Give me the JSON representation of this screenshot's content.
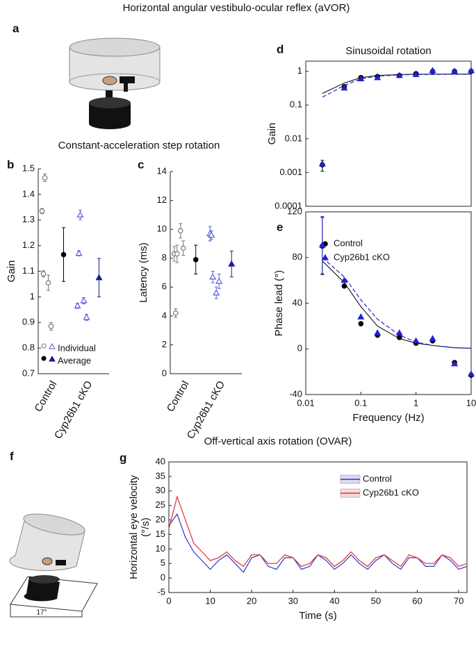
{
  "title": "Horizontal angular vestibulo-ocular reflex (aVOR)",
  "panel_labels": [
    "a",
    "b",
    "c",
    "d",
    "e",
    "f",
    "g"
  ],
  "subtitles": [
    "Constant-acceleration step rotation",
    "Off-vertical axis rotation (OVAR)"
  ],
  "illustration": {
    "tilt_label": "17°"
  },
  "chart_data": [
    {
      "type": "strip",
      "ylabel": "Gain",
      "categories": [
        "Control",
        "Cyp26b1 cKO"
      ],
      "ylim": [
        0.7,
        1.5
      ],
      "yticks": [
        0.7,
        0.8,
        0.9,
        1,
        1.1,
        1.2,
        1.3,
        1.4,
        1.5
      ],
      "legend": "lower left",
      "series": [
        {
          "name": "Individual",
          "colors": [
            "#777777",
            "#5a5ad8"
          ],
          "values": [
            [
              1.335,
              1.465,
              1.055,
              1.09,
              0.885
            ],
            [
              0.965,
              1.32,
              0.985,
              1.17,
              0.92
            ]
          ],
          "errors": [
            [
              0.01,
              0.015,
              0.03,
              0.012,
              0.015
            ],
            [
              0.01,
              0.018,
              0.012,
              0.01,
              0.012
            ]
          ]
        },
        {
          "name": "Average",
          "colors": [
            "#000000",
            "#1a1a99"
          ],
          "values": [
            1.165,
            1.075
          ],
          "errors": [
            0.105,
            0.075
          ]
        }
      ]
    },
    {
      "type": "strip",
      "ylabel": "Latency (ms)",
      "categories": [
        "Control",
        "Cyp26b1 cKO"
      ],
      "ylim": [
        0,
        14
      ],
      "yticks": [
        0,
        2,
        4,
        6,
        8,
        10,
        12,
        14
      ],
      "series": [
        {
          "name": "Individual",
          "colors": [
            "#777777",
            "#5a5ad8"
          ],
          "values": [
            [
              8.3,
              8.3,
              9.9,
              4.2,
              8.7
            ],
            [
              9.7,
              6.7,
              5.6,
              9.6,
              6.4
            ]
          ],
          "errors": [
            [
              0.5,
              0.6,
              0.5,
              0.3,
              0.5
            ],
            [
              0.5,
              0.4,
              0.4,
              0.3,
              0.5
            ]
          ]
        },
        {
          "name": "Average",
          "colors": [
            "#000000",
            "#1a1a99"
          ],
          "values": [
            7.9,
            7.6
          ],
          "errors": [
            1.0,
            0.9
          ]
        }
      ]
    },
    {
      "type": "line",
      "title": "Sinusoidal rotation",
      "ylabel": "Gain",
      "xscale": "log",
      "yscale": "log",
      "xlim": [
        0.01,
        10
      ],
      "ylim": [
        0.0001,
        2
      ],
      "yticks": [
        0.0001,
        0.001,
        0.01,
        0.1,
        1
      ],
      "series": [
        {
          "color": "#222222",
          "x": [
            0.02,
            0.05,
            0.1,
            0.2,
            0.5,
            1,
            10
          ],
          "values": [
            0.22,
            0.45,
            0.65,
            0.75,
            0.8,
            0.82,
            0.83
          ]
        },
        {
          "color": "#2222cc",
          "dash": true,
          "x": [
            0.02,
            0.05,
            0.1,
            0.2,
            0.5,
            1,
            10
          ],
          "values": [
            0.17,
            0.38,
            0.6,
            0.72,
            0.78,
            0.8,
            0.82
          ]
        },
        {
          "name": "Control",
          "color": "#000000",
          "marker": "circle",
          "x": [
            0.02,
            0.05,
            0.1,
            0.2,
            0.5,
            1,
            2,
            5,
            10
          ],
          "values": [
            0.0017,
            0.35,
            0.65,
            0.7,
            0.75,
            0.85,
            1.0,
            1.0,
            1.0
          ],
          "errors": [
            0.0006,
            null,
            null,
            null,
            null,
            null,
            null,
            null,
            null
          ]
        },
        {
          "name": "Cyp26b1 cKO",
          "color": "#2222cc",
          "marker": "triangle",
          "x": [
            0.02,
            0.05,
            0.1,
            0.2,
            0.5,
            1,
            2,
            5,
            10
          ],
          "values": [
            0.0018,
            0.32,
            0.6,
            0.65,
            0.75,
            0.8,
            1.05,
            1.0,
            1.05
          ],
          "errors": [
            null,
            null,
            null,
            null,
            null,
            null,
            null,
            null,
            null
          ]
        }
      ]
    },
    {
      "type": "line",
      "ylabel": "Phase lead (°)",
      "xlabel": "Frequency (Hz)",
      "xscale": "log",
      "xlim": [
        0.01,
        10
      ],
      "xticks": [
        0.01,
        0.1,
        1,
        10
      ],
      "ylim": [
        -40,
        120
      ],
      "yticks": [
        -40,
        0,
        40,
        80,
        120
      ],
      "legend": "upper left",
      "series": [
        {
          "color": "#222222",
          "x": [
            0.02,
            0.05,
            0.1,
            0.2,
            0.5,
            1,
            2,
            5,
            10
          ],
          "values": [
            77,
            58,
            37,
            20,
            9,
            5,
            3,
            1,
            0.5
          ]
        },
        {
          "color": "#2222cc",
          "dash": true,
          "x": [
            0.02,
            0.05,
            0.1,
            0.2,
            0.5,
            1,
            2,
            5,
            10
          ],
          "values": [
            80,
            63,
            43,
            26,
            12,
            6,
            3,
            1,
            0.5
          ]
        },
        {
          "name": "Control",
          "color": "#000000",
          "marker": "circle",
          "x": [
            0.02,
            0.05,
            0.1,
            0.2,
            0.5,
            1,
            2,
            5,
            10
          ],
          "values": [
            90,
            55,
            22,
            12,
            10,
            5,
            7,
            -12,
            -23
          ],
          "errors": [
            25,
            null,
            null,
            null,
            null,
            null,
            null,
            null,
            null
          ]
        },
        {
          "name": "Cyp26b1 cKO",
          "color": "#2222cc",
          "marker": "triangle",
          "x": [
            0.02,
            0.05,
            0.1,
            0.2,
            0.5,
            1,
            2,
            5,
            10
          ],
          "values": [
            91,
            60,
            28,
            14,
            14,
            7,
            9,
            -13,
            -22
          ],
          "errors": [
            25,
            null,
            null,
            null,
            null,
            null,
            null,
            null,
            null
          ]
        }
      ]
    },
    {
      "type": "line",
      "ylabel": [
        "Horizontal eye velocity",
        "(°/s)"
      ],
      "xlabel": "Time (s)",
      "xlim": [
        0,
        72
      ],
      "xticks": [
        0,
        10,
        20,
        30,
        40,
        50,
        60,
        70
      ],
      "ylim": [
        -5,
        40
      ],
      "yticks": [
        -5,
        0,
        5,
        10,
        15,
        20,
        25,
        30,
        35,
        40
      ],
      "legend": "upper right",
      "x": [
        0,
        2,
        4,
        6,
        8,
        10,
        12,
        14,
        16,
        18,
        20,
        22,
        24,
        26,
        28,
        30,
        32,
        34,
        36,
        38,
        40,
        42,
        44,
        46,
        48,
        50,
        52,
        54,
        56,
        58,
        60,
        62,
        64,
        66,
        68,
        70,
        72
      ],
      "series": [
        {
          "name": "Control",
          "color": "#3333cc",
          "values": [
            18,
            22,
            14,
            9,
            6,
            3,
            6,
            8,
            5,
            2,
            7,
            8,
            4,
            3,
            7,
            7,
            3,
            4,
            8,
            6,
            3,
            5,
            8,
            5,
            3,
            6,
            8,
            5,
            3,
            7,
            7,
            4,
            4,
            8,
            6,
            3,
            4
          ]
        },
        {
          "name": "Cyp26b1 cKO",
          "color": "#e03030",
          "values": [
            17,
            28,
            20,
            12,
            9,
            6,
            7,
            9,
            6,
            4,
            8,
            8,
            5,
            5,
            8,
            7,
            4,
            5,
            8,
            7,
            4,
            6,
            9,
            6,
            4,
            7,
            8,
            6,
            4,
            8,
            7,
            5,
            5,
            8,
            7,
            4,
            5
          ]
        }
      ]
    }
  ]
}
